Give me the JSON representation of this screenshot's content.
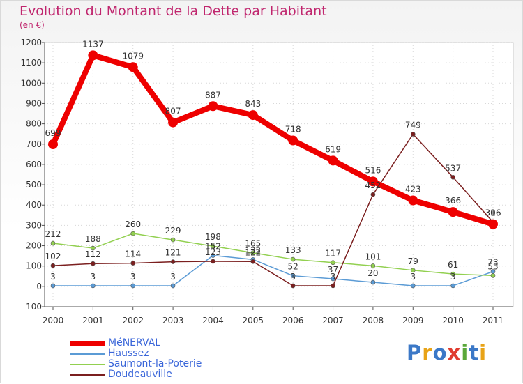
{
  "title": "Evolution du Montant de la Dette par Habitant",
  "unit": "(en €)",
  "logo": {
    "text": "Proxiti",
    "letters": [
      "P",
      "r",
      "o",
      "x",
      "i",
      "t",
      "i"
    ],
    "colors": [
      "#3b78c7",
      "#e8a317",
      "#3b78c7",
      "#e03c2f",
      "#5aa83a",
      "#3b78c7",
      "#e8a317"
    ]
  },
  "chart_data": {
    "type": "line",
    "x": [
      "2000",
      "2001",
      "2002",
      "2003",
      "2004",
      "2005",
      "2006",
      "2007",
      "2008",
      "2009",
      "2010",
      "2011"
    ],
    "ylim": [
      -100,
      1200
    ],
    "yticks": [
      -100,
      0,
      100,
      200,
      300,
      400,
      500,
      600,
      700,
      800,
      900,
      1000,
      1100,
      1200
    ],
    "grid": true,
    "legend": "bottom-left",
    "series": [
      {
        "name": "MéNERVAL",
        "color": "#ee0000",
        "width": 8,
        "marker": 7,
        "values": [
          699,
          1137,
          1079,
          807,
          887,
          843,
          718,
          619,
          516,
          423,
          366,
          306
        ],
        "labels": [
          "699",
          "1137",
          "1079",
          "807",
          "887",
          "843",
          "718",
          "619",
          "516",
          "423",
          "366",
          "306"
        ]
      },
      {
        "name": "Haussez",
        "color": "#5b9bd5",
        "width": 1.5,
        "marker": 3,
        "values": [
          3,
          3,
          3,
          3,
          152,
          132,
          52,
          37,
          20,
          3,
          3,
          73
        ],
        "labels": [
          "3",
          "3",
          "3",
          "3",
          "152",
          "132",
          "52",
          "37",
          "20",
          "3",
          "3",
          "73"
        ]
      },
      {
        "name": "Saumont-la-Poterie",
        "color": "#92d050",
        "width": 1.5,
        "marker": 3,
        "values": [
          212,
          188,
          260,
          229,
          198,
          165,
          133,
          117,
          101,
          79,
          61,
          53
        ],
        "labels": [
          "212",
          "188",
          "260",
          "229",
          "198",
          "165",
          "133",
          "117",
          "101",
          "79",
          "61",
          "53"
        ]
      },
      {
        "name": "Doudeauville",
        "color": "#7b1f1f",
        "width": 1.5,
        "marker": 3,
        "values": [
          102,
          112,
          114,
          121,
          123,
          122,
          3,
          3,
          452,
          749,
          537,
          316
        ],
        "labels": [
          "102",
          "112",
          "114",
          "121",
          "123",
          "122",
          "3",
          "3",
          "452",
          "749",
          "537",
          "316"
        ]
      }
    ]
  }
}
